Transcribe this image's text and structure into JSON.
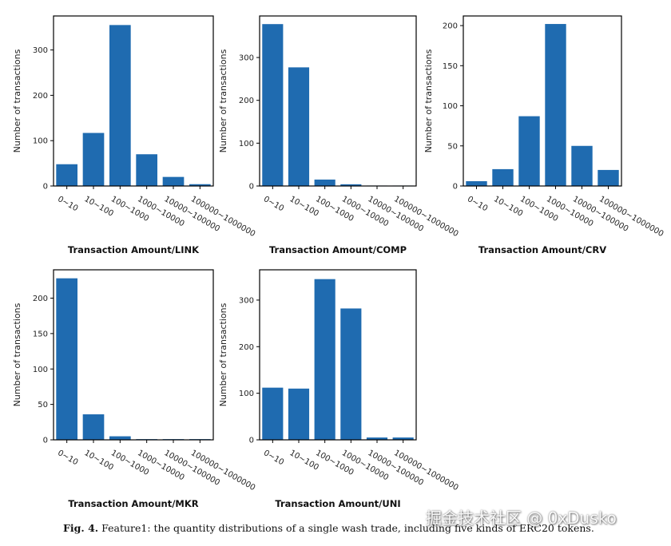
{
  "chart_data": [
    {
      "type": "bar",
      "title": "",
      "xlabel": "Transaction Amount/LINK",
      "ylabel": "Number of transactions",
      "categories": [
        "0~10",
        "10~100",
        "100~1000",
        "1000~10000",
        "10000~100000",
        "100000~1000000"
      ],
      "values": [
        48,
        117,
        355,
        70,
        20,
        4
      ],
      "ylim": [
        0,
        375
      ],
      "yticks": [
        0,
        100,
        200,
        300
      ]
    },
    {
      "type": "bar",
      "title": "",
      "xlabel": "Transaction Amount/COMP",
      "ylabel": "Number of transactions",
      "categories": [
        "0~10",
        "10~100",
        "100~1000",
        "1000~10000",
        "10000~100000",
        "100000~1000000"
      ],
      "values": [
        378,
        277,
        15,
        4,
        1,
        1
      ],
      "ylim": [
        0,
        397
      ],
      "yticks": [
        0,
        100,
        200,
        300
      ]
    },
    {
      "type": "bar",
      "title": "",
      "xlabel": "Transaction Amount/CRV",
      "ylabel": "Number of transactions",
      "categories": [
        "0~10",
        "10~100",
        "100~1000",
        "1000~10000",
        "10000~100000",
        "100000~1000000"
      ],
      "values": [
        6,
        21,
        87,
        202,
        50,
        20
      ],
      "ylim": [
        0,
        212
      ],
      "yticks": [
        0,
        50,
        100,
        150,
        200
      ]
    },
    {
      "type": "bar",
      "title": "",
      "xlabel": "Transaction Amount/MKR",
      "ylabel": "Number of transactions",
      "categories": [
        "0~10",
        "10~100",
        "100~1000",
        "1000~10000",
        "10000~100000",
        "100000~1000000"
      ],
      "values": [
        228,
        36,
        5,
        1,
        1,
        1
      ],
      "ylim": [
        0,
        240
      ],
      "yticks": [
        0,
        50,
        100,
        150,
        200
      ]
    },
    {
      "type": "bar",
      "title": "",
      "xlabel": "Transaction Amount/UNI",
      "ylabel": "Number of transactions",
      "categories": [
        "0~10",
        "10~100",
        "100~1000",
        "1000~10000",
        "10000~100000",
        "100000~1000000"
      ],
      "values": [
        112,
        110,
        345,
        282,
        5,
        5
      ],
      "ylim": [
        0,
        365
      ],
      "yticks": [
        0,
        100,
        200,
        300
      ]
    }
  ],
  "caption": {
    "label": "Fig. 4.",
    "text": "Feature1: the quantity distributions of a single wash trade, including five kinds of ERC20 tokens."
  },
  "watermark": "掘金技术社区 @ 0xDusko",
  "colors": {
    "bar": "#1f6bb0",
    "axis": "#000000",
    "text": "#222222"
  }
}
